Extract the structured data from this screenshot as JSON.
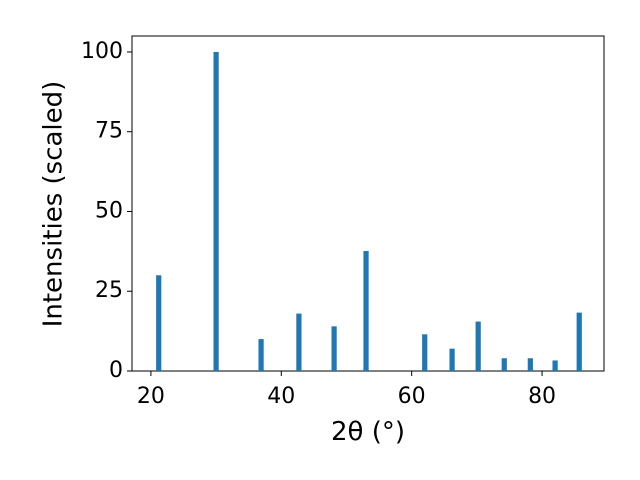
{
  "chart_data": {
    "type": "bar",
    "x": [
      21.2,
      30.0,
      36.9,
      42.7,
      48.1,
      53.0,
      62.0,
      66.2,
      70.2,
      74.2,
      78.2,
      82.0,
      85.7
    ],
    "values": [
      30,
      100,
      10,
      18,
      14,
      37.6,
      11.5,
      7,
      15.5,
      4,
      4,
      3.3,
      18.3
    ],
    "color": "#1f77b4",
    "xlabel": "2θ (°)",
    "ylabel": "Intensities (scaled)",
    "xlim": [
      17.1,
      89.5
    ],
    "ylim": [
      0,
      105
    ],
    "xticks": [
      20,
      40,
      60,
      80
    ],
    "yticks": [
      0,
      25,
      50,
      75,
      100
    ]
  }
}
